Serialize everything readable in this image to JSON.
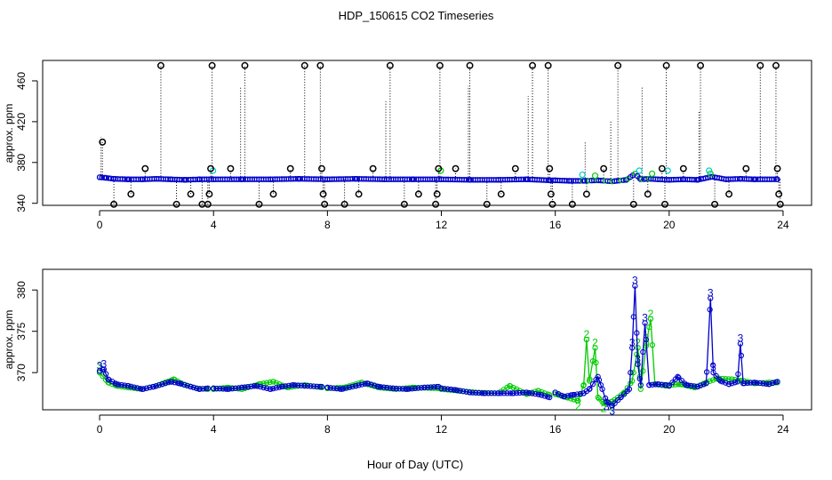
{
  "chart_data": [
    {
      "type": "scatter",
      "title": "HDP_150615  CO2 Timeseries",
      "ylabel": "approx. ppm",
      "xlabel": "",
      "xlim": [
        -2,
        25
      ],
      "ylim": [
        338,
        480
      ],
      "x_ticks": [
        0,
        4,
        8,
        12,
        16,
        20,
        24
      ],
      "x_tick_labels": [
        "0",
        "4",
        "8",
        "12",
        "16",
        "20",
        "24"
      ],
      "y_ticks": [
        340,
        380,
        420,
        460
      ],
      "y_tick_labels": [
        "340",
        "380",
        "420",
        "460"
      ],
      "grid": false,
      "baseline": [
        [
          0.0,
          365.5
        ],
        [
          0.2,
          365.0
        ],
        [
          0.5,
          364.0
        ],
        [
          1.0,
          363.5
        ],
        [
          1.5,
          363.5
        ],
        [
          2.0,
          364.0
        ],
        [
          2.5,
          363.5
        ],
        [
          3.0,
          363.0
        ],
        [
          3.5,
          363.5
        ],
        [
          4.0,
          363.5
        ],
        [
          5.0,
          363.5
        ],
        [
          6.0,
          363.5
        ],
        [
          7.0,
          364.0
        ],
        [
          8.0,
          363.5
        ],
        [
          9.0,
          364.0
        ],
        [
          10.0,
          363.5
        ],
        [
          11.0,
          363.5
        ],
        [
          12.0,
          363.5
        ],
        [
          13.0,
          363.0
        ],
        [
          14.0,
          363.0
        ],
        [
          15.0,
          363.5
        ],
        [
          15.8,
          362.5
        ],
        [
          16.0,
          362.5
        ],
        [
          16.5,
          362.0
        ],
        [
          17.0,
          362.0
        ],
        [
          17.5,
          362.5
        ],
        [
          18.0,
          361.5
        ],
        [
          18.5,
          363.0
        ],
        [
          18.8,
          369.0
        ],
        [
          19.0,
          363.5
        ],
        [
          19.3,
          364.0
        ],
        [
          19.6,
          363.5
        ],
        [
          20.0,
          363.0
        ],
        [
          20.5,
          363.5
        ],
        [
          21.0,
          363.0
        ],
        [
          21.5,
          366.0
        ],
        [
          22.0,
          363.5
        ],
        [
          22.5,
          364.0
        ],
        [
          23.0,
          363.5
        ],
        [
          23.8,
          363.5
        ]
      ],
      "outliers": [
        [
          0.1,
          400
        ],
        [
          0.5,
          339
        ],
        [
          1.1,
          349
        ],
        [
          1.6,
          374
        ],
        [
          2.15,
          475
        ],
        [
          2.7,
          339
        ],
        [
          3.2,
          349
        ],
        [
          3.6,
          339
        ],
        [
          3.8,
          339
        ],
        [
          3.85,
          349
        ],
        [
          3.9,
          374
        ],
        [
          3.95,
          475
        ],
        [
          4.6,
          374
        ],
        [
          5.1,
          475
        ],
        [
          5.6,
          339
        ],
        [
          6.1,
          349
        ],
        [
          6.7,
          374
        ],
        [
          7.2,
          475
        ],
        [
          7.75,
          475
        ],
        [
          7.8,
          374
        ],
        [
          7.85,
          349
        ],
        [
          7.9,
          339
        ],
        [
          8.6,
          339
        ],
        [
          9.1,
          349
        ],
        [
          9.6,
          374
        ],
        [
          10.2,
          475
        ],
        [
          10.7,
          339
        ],
        [
          11.2,
          349
        ],
        [
          11.8,
          339
        ],
        [
          11.85,
          349
        ],
        [
          11.9,
          374
        ],
        [
          11.95,
          475
        ],
        [
          12.5,
          374
        ],
        [
          13.0,
          475
        ],
        [
          13.6,
          339
        ],
        [
          14.1,
          349
        ],
        [
          14.6,
          374
        ],
        [
          15.2,
          475
        ],
        [
          15.75,
          475
        ],
        [
          15.8,
          374
        ],
        [
          15.85,
          349
        ],
        [
          15.9,
          339
        ],
        [
          16.6,
          339
        ],
        [
          17.1,
          349
        ],
        [
          17.7,
          374
        ],
        [
          18.2,
          475
        ],
        [
          18.75,
          339
        ],
        [
          19.25,
          349
        ],
        [
          19.75,
          374
        ],
        [
          19.85,
          339
        ],
        [
          19.9,
          475
        ],
        [
          20.5,
          374
        ],
        [
          21.1,
          475
        ],
        [
          21.6,
          339
        ],
        [
          22.1,
          349
        ],
        [
          22.7,
          374
        ],
        [
          23.2,
          475
        ],
        [
          23.75,
          475
        ],
        [
          23.8,
          374
        ],
        [
          23.85,
          349
        ],
        [
          23.9,
          339
        ]
      ],
      "dotted_spikes": [
        [
          0.05,
          405
        ],
        [
          4.95,
          455
        ],
        [
          10.05,
          440
        ],
        [
          12.95,
          455
        ],
        [
          15.05,
          445
        ],
        [
          17.05,
          400
        ],
        [
          17.95,
          420
        ],
        [
          19.05,
          455
        ],
        [
          21.05,
          430
        ]
      ],
      "series_colors": {
        "outlier": "#000000",
        "main": "#0000cc",
        "alt": "#00cc00",
        "cyan": "#00cccc"
      }
    },
    {
      "type": "line",
      "title": "",
      "ylabel": "approx. ppm",
      "xlabel": "Hour of Day (UTC)",
      "xlim": [
        -2,
        25
      ],
      "ylim": [
        365.5,
        382.5
      ],
      "x_ticks": [
        0,
        4,
        8,
        12,
        16,
        20,
        24
      ],
      "x_tick_labels": [
        "0",
        "4",
        "8",
        "12",
        "16",
        "20",
        "24"
      ],
      "y_ticks": [
        370,
        375,
        380
      ],
      "y_tick_labels": [
        "370",
        "375",
        "380"
      ],
      "grid": false,
      "series": [
        {
          "key": "3",
          "color": "#0000cc",
          "segments": [
            [
              [
                0.0,
                370.2
              ],
              [
                0.15,
                370.4
              ],
              [
                0.3,
                369.2
              ],
              [
                0.6,
                368.6
              ],
              [
                1.0,
                368.4
              ],
              [
                1.5,
                368.0
              ],
              [
                1.9,
                368.3
              ],
              [
                2.2,
                368.6
              ],
              [
                2.5,
                368.9
              ],
              [
                2.8,
                368.7
              ],
              [
                3.2,
                368.3
              ],
              [
                3.5,
                368.0
              ],
              [
                3.8,
                368.1
              ]
            ],
            [
              [
                4.0,
                368.1
              ],
              [
                4.5,
                368.0
              ],
              [
                5.0,
                368.2
              ],
              [
                5.5,
                368.4
              ],
              [
                6.0,
                368.0
              ],
              [
                6.4,
                368.3
              ],
              [
                6.8,
                368.5
              ],
              [
                7.2,
                368.4
              ],
              [
                7.8,
                368.3
              ]
            ],
            [
              [
                8.0,
                368.2
              ],
              [
                8.5,
                368.0
              ],
              [
                9.0,
                368.4
              ],
              [
                9.4,
                368.7
              ],
              [
                9.8,
                368.3
              ],
              [
                10.3,
                368.1
              ],
              [
                10.8,
                368.0
              ],
              [
                11.4,
                368.2
              ],
              [
                11.9,
                368.3
              ]
            ],
            [
              [
                12.0,
                368.1
              ],
              [
                12.5,
                367.9
              ],
              [
                13.0,
                367.6
              ],
              [
                13.5,
                367.5
              ],
              [
                14.0,
                367.5
              ],
              [
                14.5,
                367.5
              ],
              [
                15.0,
                367.6
              ],
              [
                15.5,
                367.3
              ],
              [
                15.8,
                367.0
              ]
            ],
            [
              [
                16.0,
                367.6
              ],
              [
                16.3,
                367.1
              ],
              [
                16.6,
                367.3
              ],
              [
                17.0,
                367.5
              ],
              [
                17.2,
                368.0
              ],
              [
                17.5,
                369.5
              ],
              [
                17.6,
                368.5
              ],
              [
                17.8,
                366.5
              ],
              [
                18.0,
                366.0
              ],
              [
                18.3,
                367.0
              ],
              [
                18.6,
                368.0
              ],
              [
                18.7,
                373.0
              ],
              [
                18.8,
                380.5
              ],
              [
                18.9,
                371.0
              ],
              [
                19.0,
                368.5
              ],
              [
                19.15,
                376.0
              ],
              [
                19.3,
                368.5
              ],
              [
                19.6,
                368.6
              ],
              [
                19.9,
                368.5
              ]
            ],
            [
              [
                20.0,
                368.4
              ],
              [
                20.3,
                369.5
              ],
              [
                20.6,
                368.5
              ],
              [
                21.0,
                368.3
              ],
              [
                21.3,
                368.7
              ],
              [
                21.45,
                379.0
              ],
              [
                21.55,
                370.0
              ],
              [
                21.8,
                369.0
              ],
              [
                22.1,
                368.6
              ],
              [
                22.4,
                368.9
              ],
              [
                22.5,
                373.5
              ],
              [
                22.6,
                368.7
              ],
              [
                23.0,
                368.8
              ],
              [
                23.5,
                368.6
              ],
              [
                23.8,
                368.9
              ]
            ]
          ]
        },
        {
          "key": "2",
          "color": "#00cc00",
          "segments": [
            [
              [
                0.0,
                370.0
              ],
              [
                0.3,
                368.8
              ],
              [
                0.6,
                368.4
              ],
              [
                1.0,
                368.2
              ],
              [
                1.5,
                368.0
              ],
              [
                2.0,
                368.4
              ],
              [
                2.3,
                368.8
              ],
              [
                2.6,
                369.2
              ],
              [
                3.0,
                368.5
              ],
              [
                3.4,
                368.1
              ],
              [
                3.8,
                368.0
              ]
            ],
            [
              [
                4.0,
                368.0
              ],
              [
                4.5,
                368.2
              ],
              [
                5.0,
                368.0
              ],
              [
                5.6,
                368.6
              ],
              [
                6.1,
                368.9
              ],
              [
                6.6,
                368.2
              ],
              [
                7.2,
                368.5
              ],
              [
                7.8,
                368.2
              ]
            ],
            [
              [
                8.0,
                368.1
              ],
              [
                8.6,
                368.2
              ],
              [
                9.2,
                368.8
              ],
              [
                9.8,
                368.2
              ],
              [
                10.4,
                368.0
              ],
              [
                11.0,
                368.2
              ],
              [
                11.9,
                368.1
              ]
            ],
            [
              [
                12.0,
                368.0
              ],
              [
                12.6,
                367.8
              ],
              [
                13.2,
                367.6
              ],
              [
                14.0,
                367.5
              ],
              [
                14.4,
                368.4
              ],
              [
                15.0,
                367.4
              ],
              [
                15.4,
                367.8
              ],
              [
                15.8,
                367.3
              ]
            ],
            [
              [
                16.0,
                367.4
              ],
              [
                16.4,
                367.0
              ],
              [
                16.8,
                366.6
              ],
              [
                17.0,
                368.5
              ],
              [
                17.1,
                374.0
              ],
              [
                17.2,
                369.0
              ],
              [
                17.4,
                373.0
              ],
              [
                17.5,
                367.0
              ],
              [
                17.7,
                366.3
              ],
              [
                18.0,
                366.5
              ],
              [
                18.4,
                367.5
              ],
              [
                18.7,
                369.0
              ],
              [
                18.9,
                373.0
              ],
              [
                19.0,
                368.0
              ],
              [
                19.2,
                373.5
              ],
              [
                19.35,
                376.5
              ],
              [
                19.5,
                368.6
              ],
              [
                19.9,
                368.4
              ]
            ],
            [
              [
                20.0,
                368.5
              ],
              [
                20.4,
                368.6
              ],
              [
                20.9,
                368.2
              ],
              [
                21.3,
                368.8
              ],
              [
                21.7,
                369.3
              ],
              [
                22.2,
                369.2
              ],
              [
                22.6,
                369.0
              ],
              [
                23.0,
                368.7
              ],
              [
                23.5,
                368.8
              ],
              [
                23.8,
                368.8
              ]
            ]
          ]
        }
      ]
    }
  ]
}
